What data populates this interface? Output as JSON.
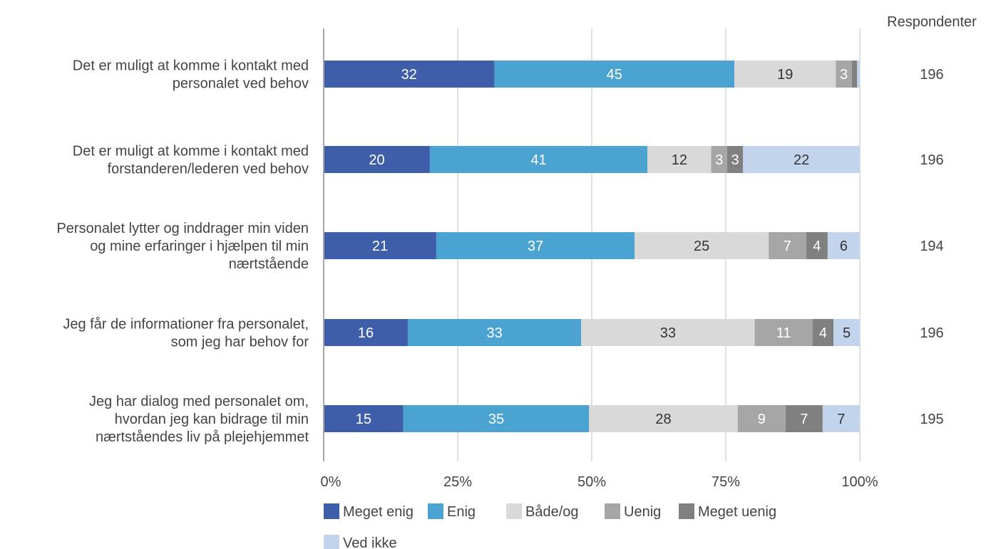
{
  "chart_data": {
    "type": "bar",
    "orientation": "horizontal",
    "stacked": "percent",
    "categories": [
      "Det er muligt at komme i kontakt med personalet ved behov",
      "Det er muligt at komme i kontakt med forstanderen/lederen ved behov",
      "Personalet lytter og inddrager min viden og mine erfaringer i hjælpen til min nærtstående",
      "Jeg får de informationer fra personalet, som jeg har behov for",
      "Jeg har dialog med personalet om, hvordan jeg kan bidrage til min nærtståendes liv på plejehjemmet"
    ],
    "category_lines": [
      [
        "Det er muligt at komme i kontakt med",
        "personalet ved behov"
      ],
      [
        "Det er muligt at komme i kontakt med",
        "forstanderen/lederen ved behov"
      ],
      [
        "Personalet lytter og inddrager min viden",
        "og mine erfaringer i hjælpen til min",
        "nærtstående"
      ],
      [
        "Jeg får de informationer fra personalet,",
        "som jeg har behov for"
      ],
      [
        "Jeg har dialog med personalet om,",
        "hvordan jeg kan bidrage til min",
        "nærtståendes liv på plejehjemmet"
      ]
    ],
    "series": [
      {
        "name": "Meget enig",
        "color": "#3f5ea9",
        "label_color": "#ffffff",
        "values": [
          32,
          20,
          21,
          16,
          15
        ]
      },
      {
        "name": "Enig",
        "color": "#4aa3d1",
        "label_color": "#ffffff",
        "values": [
          45,
          41,
          37,
          33,
          35
        ]
      },
      {
        "name": "Både/og",
        "color": "#d9d9d9",
        "label_color": "#333333",
        "values": [
          19,
          12,
          25,
          33,
          28
        ]
      },
      {
        "name": "Uenig",
        "color": "#a6a6a6",
        "label_color": "#ffffff",
        "values": [
          3,
          3,
          7,
          11,
          9
        ]
      },
      {
        "name": "Meget uenig",
        "color": "#808080",
        "label_color": "#ffffff",
        "values": [
          1,
          3,
          4,
          4,
          7
        ]
      },
      {
        "name": "Ved ikke",
        "color": "#c2d3ec",
        "label_color": "#333333",
        "values": [
          0.5,
          22,
          6,
          5,
          7
        ]
      }
    ],
    "value_labels": [
      [
        "32",
        "45",
        "19",
        "3",
        "",
        ""
      ],
      [
        "20",
        "41",
        "12",
        "3",
        "3",
        "22"
      ],
      [
        "21",
        "37",
        "25",
        "7",
        "4",
        "6"
      ],
      [
        "16",
        "33",
        "33",
        "11",
        "4",
        "5"
      ],
      [
        "15",
        "35",
        "28",
        "9",
        "7",
        "7"
      ]
    ],
    "x_ticks": [
      "0%",
      "25%",
      "50%",
      "75%",
      "100%"
    ],
    "xlim": [
      0,
      100
    ],
    "respondents_header": "Respondenter",
    "respondents": [
      "196",
      "196",
      "194",
      "196",
      "195"
    ],
    "legend_position": "bottom",
    "grid": true
  }
}
